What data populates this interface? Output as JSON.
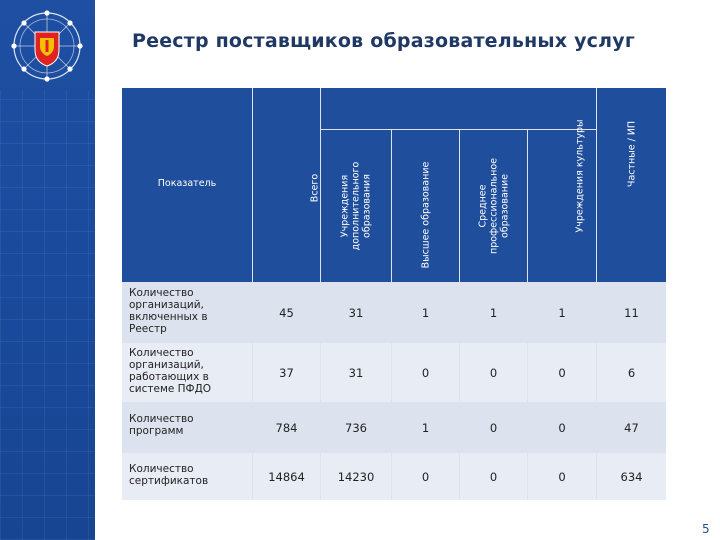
{
  "title": "Реестр поставщиков образовательных услуг",
  "headers": {
    "indicator": "Показатель",
    "total": "Всего",
    "additional": "Учреждения дополнительного образования",
    "higher": "Высшее образование",
    "vocational": "Среднее профессиональное образование",
    "culture": "Учреждения культуры",
    "private": "Частные / ИП"
  },
  "rows": [
    {
      "label": "Количество организаций, включенных в Реестр",
      "values": [
        "45",
        "31",
        "1",
        "1",
        "1",
        "11"
      ]
    },
    {
      "label": "Количество организаций, работающих в системе ПФДО",
      "values": [
        "37",
        "31",
        "0",
        "0",
        "0",
        "6"
      ]
    },
    {
      "label": "Количество программ",
      "values": [
        "784",
        "736",
        "1",
        "0",
        "0",
        "47"
      ]
    },
    {
      "label": "Количество сертификатов",
      "values": [
        "14864",
        "14230",
        "0",
        "0",
        "0",
        "634"
      ]
    }
  ],
  "page_number": "5",
  "colors": {
    "header_bg": "#1f4e9c",
    "side_bg": "#1e4fa2",
    "title": "#1f3864",
    "body_bg": "#dde3ee"
  },
  "emblem": "region-coat-of-arms-emblem"
}
